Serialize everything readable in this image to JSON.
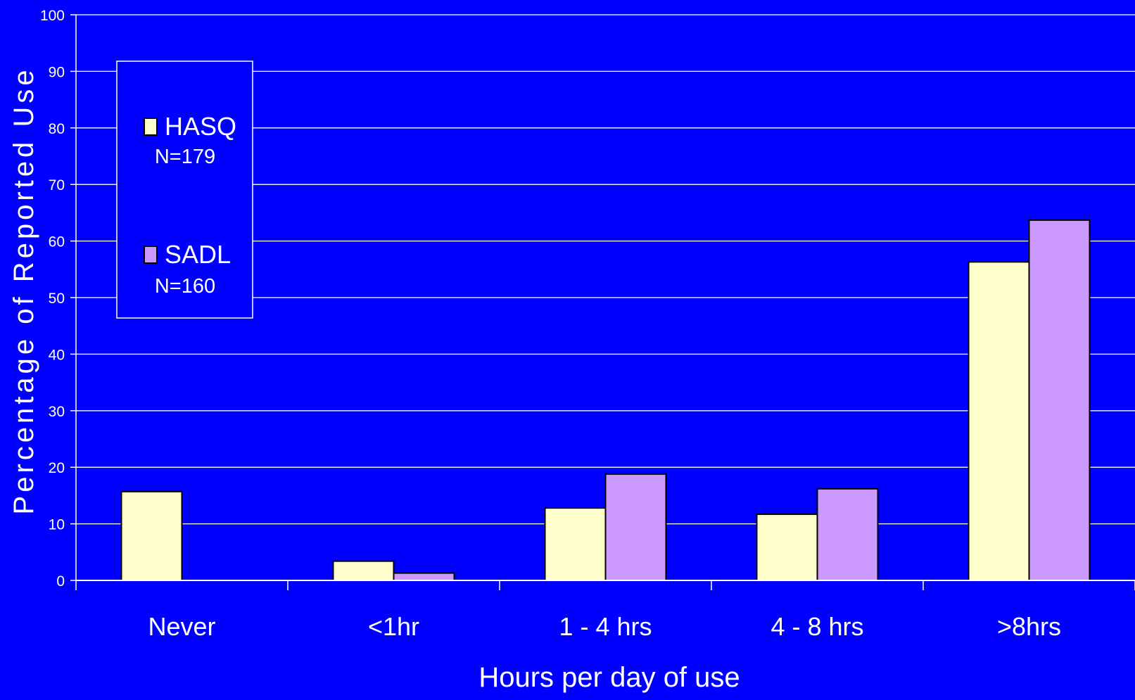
{
  "chart_data": {
    "type": "bar",
    "title": "",
    "xlabel": "Hours per day of use",
    "ylabel": "Percentage of Reported Use",
    "categories": [
      "Never",
      "<1hr",
      "1 - 4 hrs",
      "4 - 8 hrs",
      ">8hrs"
    ],
    "ylim": [
      0,
      100
    ],
    "yticks": [
      "0",
      "10",
      "20",
      "30",
      "40",
      "50",
      "60",
      "70",
      "80",
      "90",
      "100"
    ],
    "grid": true,
    "legend_position": "top-left",
    "series": [
      {
        "name": "HASQ",
        "sample": "N=179",
        "color": "#ffffcc",
        "values": [
          15.7,
          3.4,
          12.8,
          11.7,
          56.3
        ]
      },
      {
        "name": "SADL",
        "sample": "N=160",
        "color": "#cc99ff",
        "values": [
          0,
          1.3,
          18.8,
          16.2,
          63.7
        ]
      }
    ],
    "background_color": "#0000ff",
    "foreground_color": "#ffffff"
  }
}
